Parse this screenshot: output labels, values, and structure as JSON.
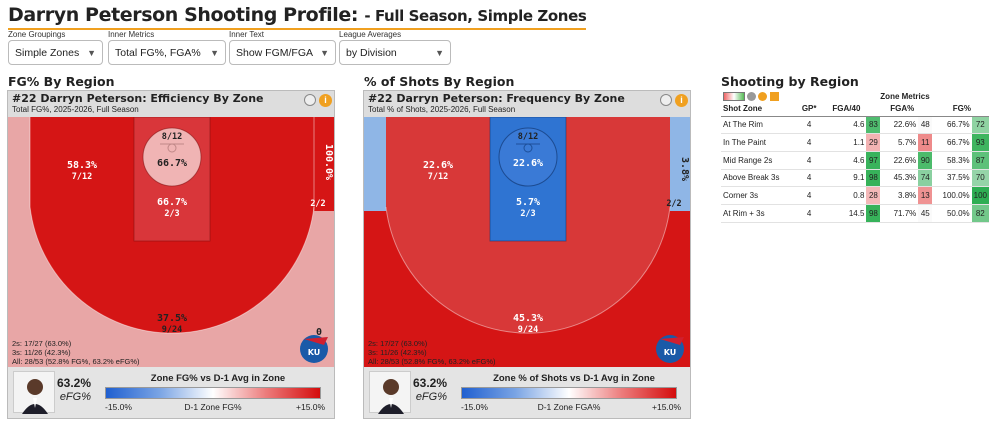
{
  "page": {
    "title": "Darryn Peterson Shooting Profile:",
    "subtitle": "- Full Season, Simple Zones"
  },
  "controls": [
    {
      "label": "Zone Groupings",
      "value": "Simple Zones"
    },
    {
      "label": "Inner Metrics",
      "value": "Total FG%, FGA%"
    },
    {
      "label": "Inner Text",
      "value": "Show FGM/FGA"
    },
    {
      "label": "League Averages",
      "value": "by Division"
    }
  ],
  "sections": {
    "left": "FG% By Region",
    "mid": "% of Shots By Region",
    "right": "Shooting by Region"
  },
  "panels": [
    {
      "title": "#22 Darryn Peterson: Efficiency By Zone",
      "subtitle": "Total FG%, 2025-2026, Full Season",
      "zones": {
        "rim_pct": "66.7%",
        "rim_frac": "8/12",
        "paint_pct": "66.7%",
        "paint_frac": "2/3",
        "mid_pct": "58.3%",
        "mid_frac": "7/12",
        "corner_pct": "100.0%",
        "corner_frac": "2/2",
        "ab3_pct": "37.5%",
        "ab3_frac": "9/24"
      },
      "corner_extra": "0",
      "stats": [
        "2s: 17/27 (63.0%)",
        "3s: 11/26 (42.3%)",
        "All: 28/53 (52.8% FG%, 63.2% eFG%)"
      ],
      "efg_value": "63.2%",
      "efg_label": "eFG%",
      "legend": {
        "title": "Zone FG% vs D-1 Avg in Zone",
        "left": "-15.0%",
        "mid": "D-1 Zone FG%",
        "right": "+15.0%"
      },
      "colors": {
        "rim": "#f0b4b4",
        "paint": "#d9363a",
        "mid": "#d51515",
        "corner": "#d51515",
        "ab3": "#e8a6a6"
      }
    },
    {
      "title": "#22 Darryn Peterson: Frequency By Zone",
      "subtitle": "Total % of Shots, 2025-2026, Full Season",
      "zones": {
        "rim_pct": "22.6%",
        "rim_frac": "8/12",
        "paint_pct": "5.7%",
        "paint_frac": "2/3",
        "mid_pct": "22.6%",
        "mid_frac": "7/12",
        "corner_pct": "3.8%",
        "corner_frac": "2/2",
        "ab3_pct": "45.3%",
        "ab3_frac": "9/24"
      },
      "stats": [
        "2s: 17/27 (63.0%)",
        "3s: 11/26 (42.3%)",
        "All: 28/53 (52.8% FG%, 63.2% eFG%)"
      ],
      "efg_value": "63.2%",
      "efg_label": "eFG%",
      "legend": {
        "title": "Zone % of Shots vs D-1 Avg in Zone",
        "left": "-15.0%",
        "mid": "D-1 Zone FGA%",
        "right": "+15.0%"
      },
      "colors": {
        "rim": "#3a7ad6",
        "paint": "#2f74d2",
        "mid": "#d83838",
        "corner": "#8fb6e6",
        "ab3": "#d51515"
      }
    }
  ],
  "logo": {
    "text": "KU"
  },
  "table": {
    "group_header": "Zone Metrics",
    "headers": [
      "Shot Zone",
      "GP*",
      "FGA/40",
      "",
      "FGA%",
      "",
      "FG%",
      ""
    ],
    "rows": [
      {
        "zone": "At The Rim",
        "gp": "4",
        "fga40": "4.6",
        "fga40_pct": "83",
        "fga": "22.6%",
        "fga_pct": "48",
        "fg": "66.7%",
        "fg_pct": "72",
        "c1": "#4fbc6f",
        "c2": "#fafafa",
        "c3": "#8fd3a2"
      },
      {
        "zone": "In The Paint",
        "gp": "4",
        "fga40": "1.1",
        "fga40_pct": "29",
        "fga": "5.7%",
        "fga_pct": "11",
        "fg": "66.7%",
        "fg_pct": "93",
        "c1": "#f3b3b3",
        "c2": "#ee8a8a",
        "c3": "#3fb560"
      },
      {
        "zone": "Mid Range 2s",
        "gp": "4",
        "fga40": "4.6",
        "fga40_pct": "97",
        "fga": "22.6%",
        "fga_pct": "90",
        "fg": "58.3%",
        "fg_pct": "87",
        "c1": "#39b35c",
        "c2": "#4cbb6b",
        "c3": "#5ec17a"
      },
      {
        "zone": "Above Break 3s",
        "gp": "4",
        "fga40": "9.1",
        "fga40_pct": "98",
        "fga": "45.3%",
        "fga_pct": "74",
        "fg": "37.5%",
        "fg_pct": "70",
        "c1": "#37b25a",
        "c2": "#8ad0a0",
        "c3": "#95d4a8"
      },
      {
        "zone": "Corner 3s",
        "gp": "4",
        "fga40": "0.8",
        "fga40_pct": "28",
        "fga": "3.8%",
        "fga_pct": "13",
        "fg": "100.0%",
        "fg_pct": "100",
        "c1": "#f4b8b8",
        "c2": "#ef9292",
        "c3": "#2eae53"
      },
      {
        "zone": "At Rim + 3s",
        "gp": "4",
        "fga40": "14.5",
        "fga40_pct": "98",
        "fga": "71.7%",
        "fga_pct": "45",
        "fg": "50.0%",
        "fg_pct": "82",
        "c1": "#37b25a",
        "c2": "#fafafa",
        "c3": "#72c88a"
      }
    ]
  }
}
